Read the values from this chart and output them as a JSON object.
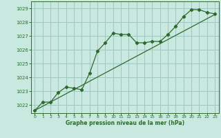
{
  "line_x": [
    0,
    1,
    2,
    3,
    4,
    5,
    6,
    7,
    8,
    9,
    10,
    11,
    12,
    13,
    14,
    15,
    16,
    17,
    18,
    19,
    20,
    21,
    22,
    23
  ],
  "line_y": [
    1021.6,
    1022.2,
    1022.2,
    1022.9,
    1023.3,
    1023.2,
    1023.1,
    1024.3,
    1025.9,
    1026.5,
    1027.2,
    1027.1,
    1027.1,
    1026.5,
    1026.5,
    1026.6,
    1026.6,
    1027.1,
    1027.7,
    1028.4,
    1028.9,
    1028.9,
    1028.7,
    1028.6
  ],
  "trend_x": [
    0,
    23
  ],
  "trend_y": [
    1021.6,
    1028.55
  ],
  "line_color": "#2d6a2d",
  "bg_color": "#c8e8e0",
  "grid_color": "#a0c8c0",
  "xlabel": "Graphe pression niveau de la mer (hPa)",
  "ylim": [
    1021.4,
    1029.5
  ],
  "xlim": [
    -0.5,
    23.5
  ],
  "yticks": [
    1022,
    1023,
    1024,
    1025,
    1026,
    1027,
    1028,
    1029
  ],
  "xticks": [
    0,
    1,
    2,
    3,
    4,
    5,
    6,
    7,
    8,
    9,
    10,
    11,
    12,
    13,
    14,
    15,
    16,
    17,
    18,
    19,
    20,
    21,
    22,
    23
  ]
}
